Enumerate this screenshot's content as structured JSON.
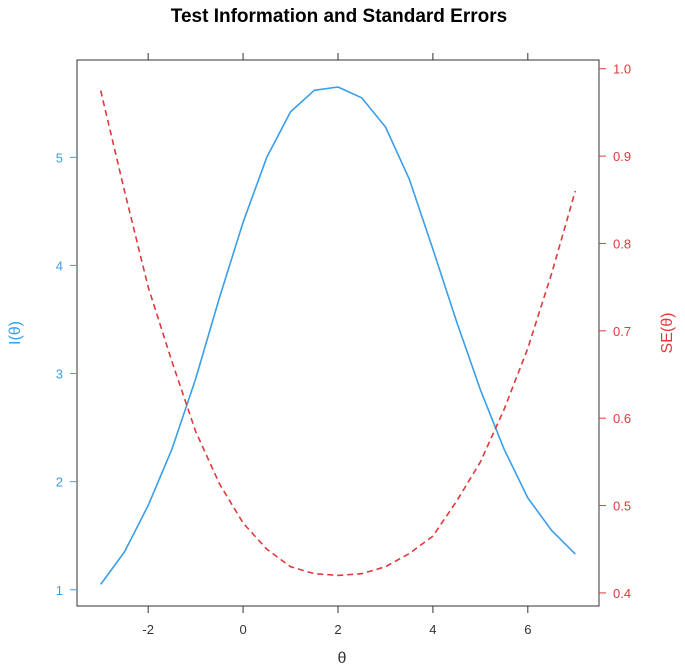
{
  "chart_data": {
    "type": "line",
    "title": "Test Information and Standard Errors",
    "xlabel": "θ",
    "ylabel_left": "I(θ)",
    "ylabel_right": "SE(θ)",
    "xlim": [
      -3.5,
      7.5
    ],
    "ylim_left": [
      0.85,
      5.9
    ],
    "ylim_right": [
      0.385,
      1.01
    ],
    "x_ticks": [
      "-2",
      "0",
      "2",
      "4",
      "6"
    ],
    "y_ticks_left": [
      "1",
      "2",
      "3",
      "4",
      "5"
    ],
    "y_ticks_right": [
      "0.4",
      "0.5",
      "0.6",
      "0.7",
      "0.8",
      "0.9",
      "1.0"
    ],
    "grid": false,
    "colors": {
      "information": "#3a9ee8",
      "se": "#e0393b",
      "axis": "#333333"
    },
    "series": [
      {
        "axis": "left",
        "style": "solid",
        "x": [
          -3,
          -2.5,
          -2,
          -1.5,
          -1,
          -0.5,
          0,
          0.5,
          1,
          1.5,
          2,
          2.5,
          3,
          3.5,
          4,
          4.5,
          5,
          5.5,
          6,
          6.5,
          7
        ],
        "values": [
          1.05,
          1.35,
          1.78,
          2.3,
          2.95,
          3.7,
          4.4,
          5.0,
          5.42,
          5.62,
          5.65,
          5.55,
          5.28,
          4.8,
          4.15,
          3.48,
          2.85,
          2.3,
          1.85,
          1.55,
          1.33
        ]
      },
      {
        "axis": "right",
        "style": "dashed",
        "x": [
          -3,
          -2.5,
          -2,
          -1.5,
          -1,
          -0.5,
          0,
          0.5,
          1,
          1.5,
          2,
          2.5,
          3,
          3.5,
          4,
          4.5,
          5,
          5.5,
          6,
          6.5,
          7
        ],
        "values": [
          0.975,
          0.86,
          0.75,
          0.665,
          0.585,
          0.525,
          0.48,
          0.45,
          0.43,
          0.422,
          0.42,
          0.422,
          0.43,
          0.445,
          0.465,
          0.505,
          0.55,
          0.61,
          0.68,
          0.765,
          0.86
        ]
      }
    ]
  }
}
